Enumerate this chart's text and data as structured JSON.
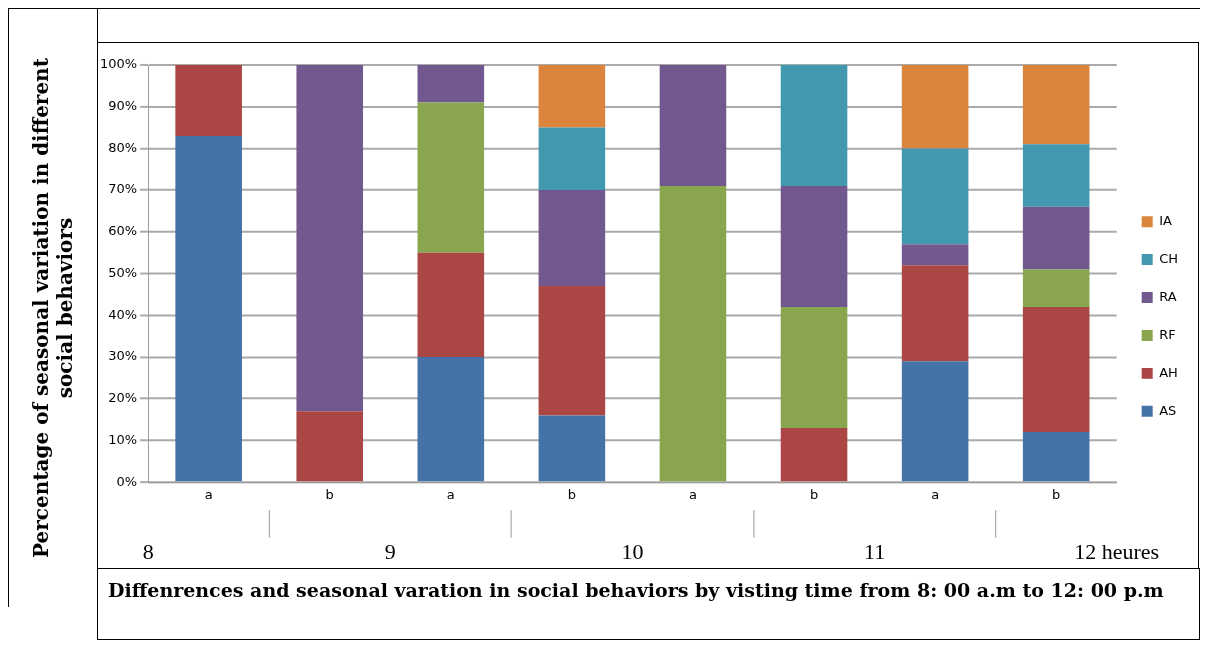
{
  "chart_data": {
    "type": "bar",
    "stacked": true,
    "ylabel": "Percentage of seasonal variation in different social behaviors",
    "annotations": [
      "Diffenrences and seasonal varation in social behaviors by visting time from 8: 00 a.m to 12: 00 p.m"
    ],
    "categories": [
      "a",
      "b",
      "a",
      "b",
      "a",
      "b",
      "a",
      "b"
    ],
    "series": [
      {
        "name": "AS",
        "color": "#4572a7",
        "values": [
          83,
          0,
          30,
          16,
          0,
          0,
          29,
          12
        ]
      },
      {
        "name": "AH",
        "color": "#aa4643",
        "values": [
          17,
          17,
          25,
          31,
          0,
          13,
          23,
          30
        ]
      },
      {
        "name": "RF",
        "color": "#89a54e",
        "values": [
          0,
          0,
          36,
          0,
          71,
          29,
          0,
          9
        ]
      },
      {
        "name": "RA",
        "color": "#71588f",
        "values": [
          0,
          83,
          9,
          23,
          29,
          29,
          5,
          15
        ]
      },
      {
        "name": "CH",
        "color": "#4198af",
        "values": [
          0,
          0,
          0,
          15,
          0,
          29,
          23,
          15
        ]
      },
      {
        "name": "IA",
        "color": "#db843d",
        "values": [
          0,
          0,
          0,
          15,
          0,
          0,
          20,
          19
        ]
      }
    ],
    "ylim": [
      0,
      100
    ],
    "yticks": [
      {
        "value": 0,
        "label": "0%"
      },
      {
        "value": 10,
        "label": "10%"
      },
      {
        "value": 20,
        "label": "20%"
      },
      {
        "value": 30,
        "label": "30%"
      },
      {
        "value": 40,
        "label": "40%"
      },
      {
        "value": 50,
        "label": "50%"
      },
      {
        "value": 60,
        "label": "60%"
      },
      {
        "value": 70,
        "label": "70%"
      },
      {
        "value": 80,
        "label": "80%"
      },
      {
        "value": 90,
        "label": "90%"
      },
      {
        "value": 100,
        "label": "100%"
      }
    ],
    "x2lim": [
      8,
      12
    ],
    "x2ticks": [
      8,
      9,
      10,
      11,
      {
        "value": 12,
        "label": "12 heures"
      }
    ],
    "grid": "y",
    "legend": "right"
  }
}
